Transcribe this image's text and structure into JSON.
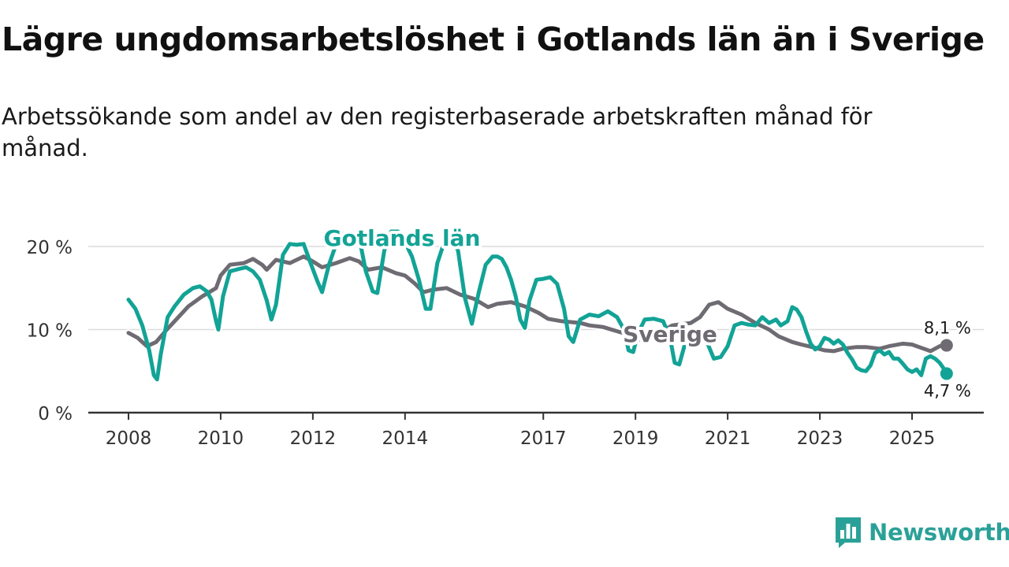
{
  "title": "Lägre ungdomsarbetslöshet i Gotlands län än i Sverige",
  "subtitle": "Arbetssökande som andel av den registerbaserade arbetskraften månad för månad.",
  "brand": "Newsworthy",
  "chart_data": {
    "type": "line",
    "title": "Lägre ungdomsarbetslöshet i Gotlands län än i Sverige",
    "subtitle": "Arbetssökande som andel av den registerbaserade arbetskraften månad för månad.",
    "xlabel": "",
    "ylabel": "",
    "xlim": [
      2008.0,
      2026.0
    ],
    "ylim": [
      0,
      22.5
    ],
    "yticks": [
      0,
      10,
      20
    ],
    "ytick_labels": [
      "0 %",
      "10 %",
      "20 %"
    ],
    "xticks": [
      2008,
      2010,
      2012,
      2014,
      2017,
      2019,
      2021,
      2023,
      2025
    ],
    "xtick_labels": [
      "2008",
      "2010",
      "2012",
      "2014",
      "2017",
      "2019",
      "2021",
      "2023",
      "2025"
    ],
    "grid": true,
    "legend": "inline",
    "series": [
      {
        "name": "Sverige",
        "color": "#6e6b73",
        "label": "Sverige",
        "end_label": "8,1 %",
        "end_value": 8.1,
        "points": [
          [
            2008.0,
            9.6
          ],
          [
            2008.2,
            9.0
          ],
          [
            2008.4,
            8.0
          ],
          [
            2008.6,
            8.5
          ],
          [
            2008.8,
            9.8
          ],
          [
            2009.0,
            11.0
          ],
          [
            2009.3,
            12.8
          ],
          [
            2009.6,
            14.0
          ],
          [
            2009.9,
            15.0
          ],
          [
            2010.0,
            16.5
          ],
          [
            2010.2,
            17.8
          ],
          [
            2010.5,
            18.0
          ],
          [
            2010.7,
            18.5
          ],
          [
            2010.9,
            17.8
          ],
          [
            2011.0,
            17.2
          ],
          [
            2011.2,
            18.4
          ],
          [
            2011.5,
            18.0
          ],
          [
            2011.8,
            18.8
          ],
          [
            2012.0,
            18.2
          ],
          [
            2012.2,
            17.5
          ],
          [
            2012.5,
            18.0
          ],
          [
            2012.8,
            18.6
          ],
          [
            2013.0,
            18.2
          ],
          [
            2013.2,
            17.2
          ],
          [
            2013.5,
            17.5
          ],
          [
            2013.8,
            16.8
          ],
          [
            2014.0,
            16.5
          ],
          [
            2014.2,
            15.6
          ],
          [
            2014.4,
            14.5
          ],
          [
            2014.6,
            14.8
          ],
          [
            2014.9,
            15.0
          ],
          [
            2015.2,
            14.2
          ],
          [
            2015.5,
            13.7
          ],
          [
            2015.8,
            12.7
          ],
          [
            2016.0,
            13.1
          ],
          [
            2016.3,
            13.3
          ],
          [
            2016.6,
            12.8
          ],
          [
            2016.9,
            12.0
          ],
          [
            2017.1,
            11.3
          ],
          [
            2017.4,
            11.0
          ],
          [
            2017.8,
            10.8
          ],
          [
            2018.0,
            10.5
          ],
          [
            2018.3,
            10.3
          ],
          [
            2018.6,
            9.8
          ],
          [
            2018.9,
            9.3
          ],
          [
            2019.1,
            8.8
          ],
          [
            2019.3,
            9.0
          ],
          [
            2019.8,
            10.5
          ],
          [
            2020.2,
            10.8
          ],
          [
            2020.4,
            11.5
          ],
          [
            2020.6,
            13.0
          ],
          [
            2020.8,
            13.3
          ],
          [
            2021.0,
            12.5
          ],
          [
            2021.3,
            11.8
          ],
          [
            2021.6,
            10.8
          ],
          [
            2021.9,
            10.0
          ],
          [
            2022.1,
            9.2
          ],
          [
            2022.4,
            8.5
          ],
          [
            2022.6,
            8.2
          ],
          [
            2022.9,
            7.8
          ],
          [
            2023.1,
            7.5
          ],
          [
            2023.3,
            7.4
          ],
          [
            2023.5,
            7.7
          ],
          [
            2023.8,
            7.9
          ],
          [
            2024.0,
            7.9
          ],
          [
            2024.3,
            7.7
          ],
          [
            2024.5,
            8.0
          ],
          [
            2024.8,
            8.3
          ],
          [
            2025.0,
            8.2
          ],
          [
            2025.2,
            7.8
          ],
          [
            2025.4,
            7.4
          ],
          [
            2025.6,
            8.0
          ],
          [
            2025.75,
            8.1
          ]
        ]
      },
      {
        "name": "Gotlands län",
        "color": "#12a396",
        "label": "Gotlands län",
        "end_label": "4,7 %",
        "end_value": 4.7,
        "points": [
          [
            2008.0,
            13.6
          ],
          [
            2008.15,
            12.5
          ],
          [
            2008.3,
            10.5
          ],
          [
            2008.45,
            7.5
          ],
          [
            2008.55,
            4.5
          ],
          [
            2008.62,
            4.0
          ],
          [
            2008.7,
            7.0
          ],
          [
            2008.85,
            11.5
          ],
          [
            2009.0,
            12.8
          ],
          [
            2009.2,
            14.2
          ],
          [
            2009.4,
            15.0
          ],
          [
            2009.55,
            15.2
          ],
          [
            2009.7,
            14.6
          ],
          [
            2009.8,
            13.6
          ],
          [
            2009.9,
            11.0
          ],
          [
            2009.95,
            10.0
          ],
          [
            2010.05,
            14.0
          ],
          [
            2010.2,
            17.0
          ],
          [
            2010.4,
            17.3
          ],
          [
            2010.55,
            17.5
          ],
          [
            2010.7,
            17.0
          ],
          [
            2010.85,
            16.0
          ],
          [
            2011.0,
            13.5
          ],
          [
            2011.1,
            11.2
          ],
          [
            2011.2,
            13.0
          ],
          [
            2011.35,
            19.0
          ],
          [
            2011.5,
            20.3
          ],
          [
            2011.65,
            20.2
          ],
          [
            2011.8,
            20.3
          ],
          [
            2011.95,
            18.0
          ],
          [
            2012.1,
            15.8
          ],
          [
            2012.2,
            14.5
          ],
          [
            2012.35,
            17.8
          ],
          [
            2012.5,
            20.2
          ],
          [
            2012.65,
            21.5
          ],
          [
            2012.8,
            21.6
          ],
          [
            2012.95,
            21.0
          ],
          [
            2013.05,
            19.8
          ],
          [
            2013.15,
            17.0
          ],
          [
            2013.3,
            14.6
          ],
          [
            2013.4,
            14.4
          ],
          [
            2013.55,
            19.5
          ],
          [
            2013.7,
            21.8
          ],
          [
            2013.85,
            21.8
          ],
          [
            2014.0,
            20.5
          ],
          [
            2014.15,
            18.8
          ],
          [
            2014.3,
            16.0
          ],
          [
            2014.45,
            12.5
          ],
          [
            2014.55,
            12.5
          ],
          [
            2014.7,
            18.0
          ],
          [
            2014.85,
            20.5
          ],
          [
            2015.0,
            21.0
          ],
          [
            2015.15,
            19.5
          ],
          [
            2015.3,
            13.8
          ],
          [
            2015.45,
            10.7
          ],
          [
            2015.6,
            14.5
          ],
          [
            2015.75,
            17.8
          ],
          [
            2015.9,
            18.8
          ],
          [
            2016.0,
            18.8
          ],
          [
            2016.1,
            18.5
          ],
          [
            2016.2,
            17.5
          ],
          [
            2016.3,
            16.0
          ],
          [
            2016.4,
            14.0
          ],
          [
            2016.5,
            11.2
          ],
          [
            2016.6,
            10.2
          ],
          [
            2016.7,
            13.5
          ],
          [
            2016.85,
            16.0
          ],
          [
            2017.0,
            16.1
          ],
          [
            2017.15,
            16.3
          ],
          [
            2017.3,
            15.5
          ],
          [
            2017.45,
            12.5
          ],
          [
            2017.55,
            9.2
          ],
          [
            2017.65,
            8.5
          ],
          [
            2017.8,
            11.2
          ],
          [
            2018.0,
            11.8
          ],
          [
            2018.2,
            11.6
          ],
          [
            2018.4,
            12.2
          ],
          [
            2018.6,
            11.5
          ],
          [
            2018.75,
            10.0
          ],
          [
            2018.85,
            7.5
          ],
          [
            2018.95,
            7.3
          ],
          [
            2019.05,
            9.5
          ],
          [
            2019.2,
            11.2
          ],
          [
            2019.4,
            11.3
          ],
          [
            2019.6,
            11.0
          ],
          [
            2019.75,
            9.0
          ],
          [
            2019.85,
            6.0
          ],
          [
            2019.95,
            5.8
          ],
          [
            2020.1,
            8.8
          ],
          [
            2020.25,
            9.3
          ],
          [
            2020.4,
            9.5
          ],
          [
            2020.55,
            8.5
          ],
          [
            2020.7,
            6.5
          ],
          [
            2020.85,
            6.7
          ],
          [
            2021.0,
            8.0
          ],
          [
            2021.15,
            10.5
          ],
          [
            2021.3,
            10.8
          ],
          [
            2021.45,
            10.6
          ],
          [
            2021.6,
            10.5
          ],
          [
            2021.75,
            11.5
          ],
          [
            2021.9,
            10.8
          ],
          [
            2022.05,
            11.2
          ],
          [
            2022.15,
            10.5
          ],
          [
            2022.3,
            11.0
          ],
          [
            2022.4,
            12.7
          ],
          [
            2022.5,
            12.4
          ],
          [
            2022.6,
            11.5
          ],
          [
            2022.7,
            9.8
          ],
          [
            2022.8,
            8.3
          ],
          [
            2022.9,
            7.6
          ],
          [
            2023.0,
            8.0
          ],
          [
            2023.1,
            9.0
          ],
          [
            2023.2,
            8.8
          ],
          [
            2023.3,
            8.3
          ],
          [
            2023.4,
            8.7
          ],
          [
            2023.5,
            8.2
          ],
          [
            2023.6,
            7.2
          ],
          [
            2023.7,
            6.4
          ],
          [
            2023.8,
            5.4
          ],
          [
            2023.9,
            5.1
          ],
          [
            2024.0,
            5.0
          ],
          [
            2024.1,
            5.7
          ],
          [
            2024.2,
            7.2
          ],
          [
            2024.3,
            7.5
          ],
          [
            2024.4,
            7.0
          ],
          [
            2024.5,
            7.3
          ],
          [
            2024.6,
            6.5
          ],
          [
            2024.7,
            6.5
          ],
          [
            2024.8,
            5.9
          ],
          [
            2024.9,
            5.2
          ],
          [
            2025.0,
            4.9
          ],
          [
            2025.1,
            5.2
          ],
          [
            2025.2,
            4.5
          ],
          [
            2025.3,
            6.5
          ],
          [
            2025.4,
            6.8
          ],
          [
            2025.5,
            6.5
          ],
          [
            2025.6,
            6.0
          ],
          [
            2025.7,
            5.2
          ],
          [
            2025.75,
            4.7
          ]
        ]
      }
    ]
  }
}
